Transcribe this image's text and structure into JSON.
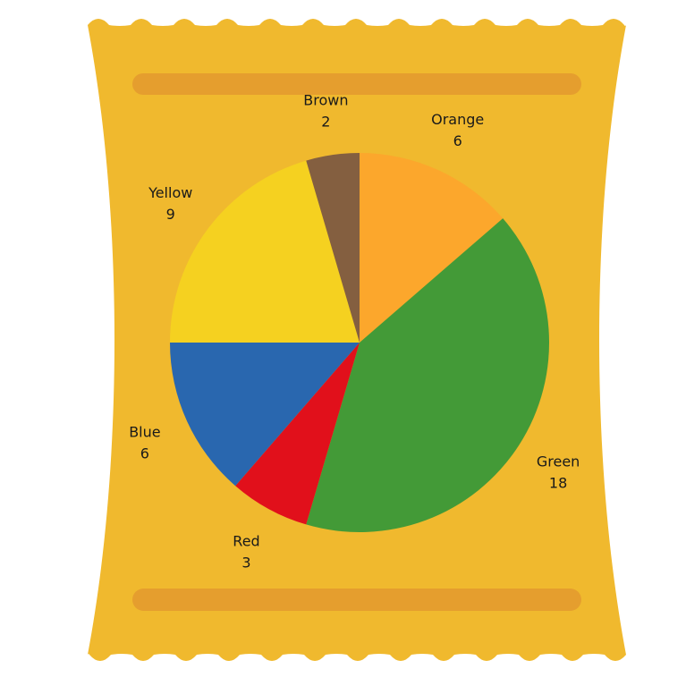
{
  "colors": {
    "bag": "#F0B92E",
    "bag_stripe": "#E59E2E",
    "label_text": "#1a1a1a"
  },
  "chart_data": {
    "type": "pie",
    "title": "",
    "series": [
      {
        "values": [
          6,
          18,
          3,
          6,
          9,
          2
        ]
      }
    ],
    "slices": [
      {
        "label": "Orange",
        "value": 6,
        "value_label": "6",
        "color": "#FCA72C"
      },
      {
        "label": "Green",
        "value": 18,
        "value_label": "18",
        "color": "#439A37"
      },
      {
        "label": "Red",
        "value": 3,
        "value_label": "3",
        "color": "#E1101B"
      },
      {
        "label": "Blue",
        "value": 6,
        "value_label": "6",
        "color": "#2967AF"
      },
      {
        "label": "Yellow",
        "value": 9,
        "value_label": "9",
        "color": "#F5D120"
      },
      {
        "label": "Brown",
        "value": 2,
        "value_label": "2",
        "color": "#845F40"
      }
    ],
    "start": "top",
    "direction": "clockwise",
    "legend": "none"
  }
}
